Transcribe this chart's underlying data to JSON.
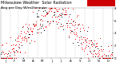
{
  "title": "Milwaukee Weather  Solar Radiation",
  "subtitle": "Avg per Day W/m2/minute",
  "bg_color": "#ffffff",
  "plot_bg": "#ffffff",
  "grid_color": "#aaaaaa",
  "dot_color_red": "#ff0000",
  "dot_color_black": "#000000",
  "highlight_bg": "#cc0000",
  "highlight_text": "#ff8888",
  "y_max": 8,
  "y_min": 0,
  "num_points": 365,
  "title_fontsize": 3.5,
  "tick_fontsize": 2.8,
  "seed": 42
}
